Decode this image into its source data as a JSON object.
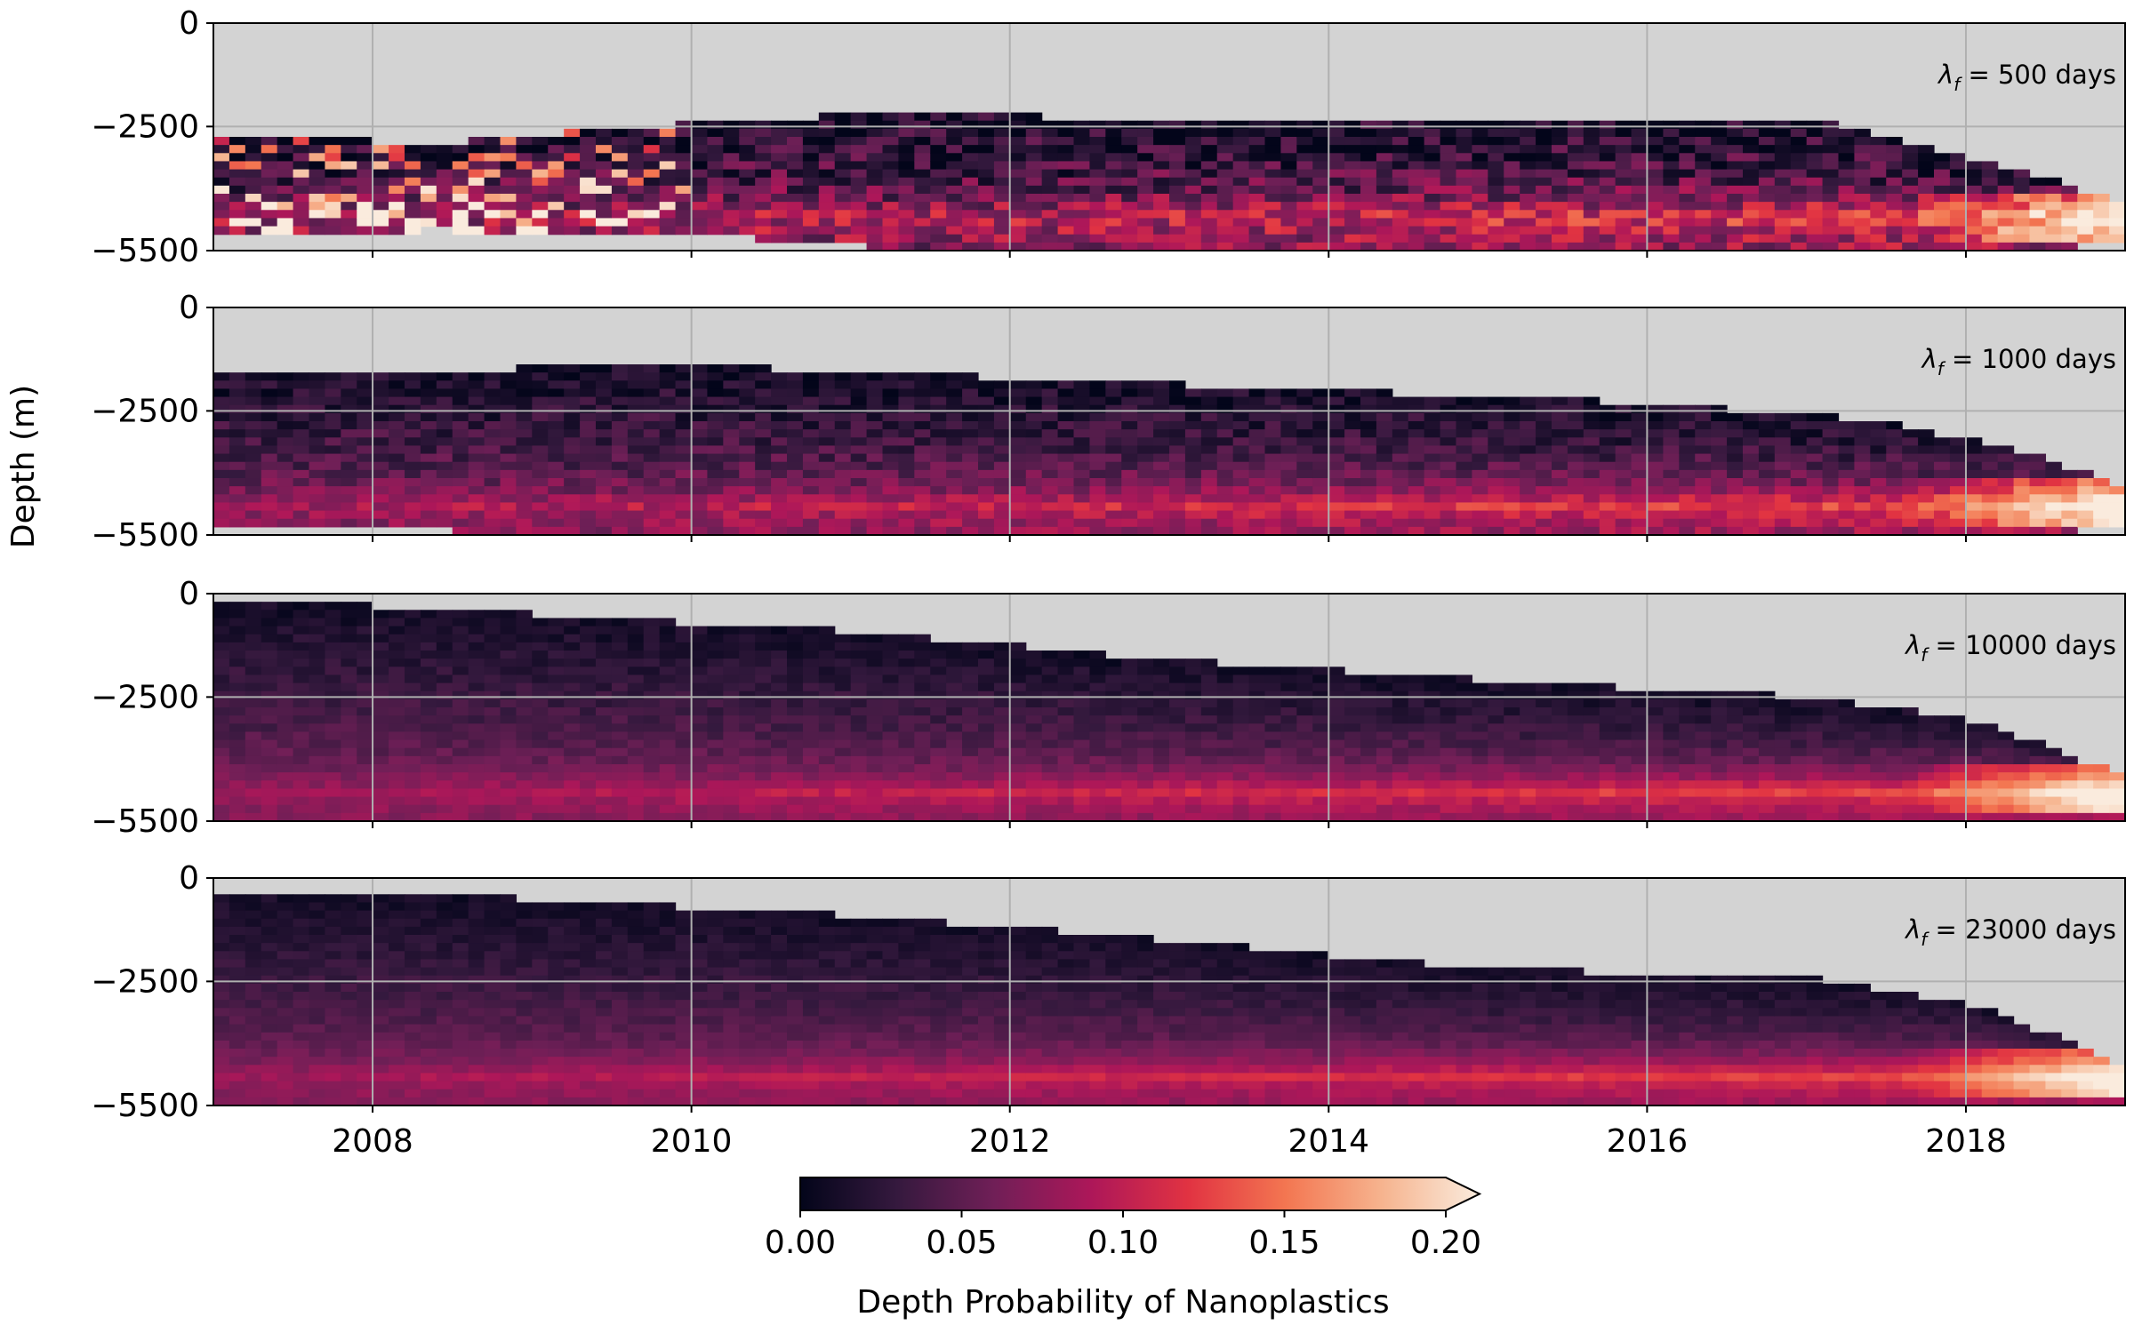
{
  "chart_data": {
    "type": "heatmap",
    "ylabel": "Depth (m)",
    "x_range": [
      "2007-01-01",
      "2019-01-01"
    ],
    "x_ticks": [
      "2008",
      "2010",
      "2012",
      "2014",
      "2016",
      "2018"
    ],
    "y_range": [
      -5500,
      0
    ],
    "y_ticks": [
      "0",
      "−2500",
      "−5500"
    ],
    "grid": true,
    "panel_background": "#d3d3d3",
    "colormap": "rocket",
    "colorbar": {
      "label": "Depth Probability of Nanoplastics",
      "range": [
        0.0,
        0.2
      ],
      "ticks": [
        "0.00",
        "0.05",
        "0.10",
        "0.15",
        "0.20"
      ],
      "extend": "max",
      "orientation": "horizontal",
      "colors": [
        "#03051a",
        "#35193e",
        "#701f57",
        "#ad1759",
        "#e13342",
        "#f37651",
        "#f6b48f",
        "#faebdd"
      ]
    },
    "panels": [
      {
        "annotation_symbol": "λ",
        "annotation_subscript": "f",
        "annotation_text": " = 500 days",
        "lambda_days": 500,
        "envelope": [
          {
            "date": "2007-01-01",
            "top": -2700,
            "bottom": -5100
          },
          {
            "date": "2008-06-01",
            "top": -2900,
            "bottom": -5000
          },
          {
            "date": "2010-06-01",
            "top": -2300,
            "bottom": -5200
          },
          {
            "date": "2011-06-01",
            "top": -2200,
            "bottom": -5500
          },
          {
            "date": "2014-01-01",
            "top": -2400,
            "bottom": -5500
          },
          {
            "date": "2017-01-01",
            "top": -2300,
            "bottom": -5500
          },
          {
            "date": "2018-01-01",
            "top": -3200,
            "bottom": -5500
          },
          {
            "date": "2018-06-01",
            "top": -3600,
            "bottom": -5500
          },
          {
            "date": "2019-01-01",
            "top": -4400,
            "bottom": -5300
          }
        ],
        "max_depth_band": -4700,
        "noise_level": 0.9
      },
      {
        "annotation_symbol": "λ",
        "annotation_subscript": "f",
        "annotation_text": " = 1000 days",
        "lambda_days": 1000,
        "envelope": [
          {
            "date": "2007-01-01",
            "top": -1600,
            "bottom": -5300
          },
          {
            "date": "2010-01-01",
            "top": -1400,
            "bottom": -5500
          },
          {
            "date": "2012-01-01",
            "top": -1700,
            "bottom": -5500
          },
          {
            "date": "2014-01-01",
            "top": -2000,
            "bottom": -5500
          },
          {
            "date": "2016-01-01",
            "top": -2300,
            "bottom": -5500
          },
          {
            "date": "2017-06-01",
            "top": -2700,
            "bottom": -5500
          },
          {
            "date": "2018-06-01",
            "top": -3500,
            "bottom": -5500
          },
          {
            "date": "2019-01-01",
            "top": -4400,
            "bottom": -5300
          }
        ],
        "max_depth_band": -4800,
        "noise_level": 0.5
      },
      {
        "annotation_symbol": "λ",
        "annotation_subscript": "f",
        "annotation_text": " = 10000 days",
        "lambda_days": 10000,
        "envelope": [
          {
            "date": "2007-01-01",
            "top": -100,
            "bottom": -5500
          },
          {
            "date": "2009-01-01",
            "top": -500,
            "bottom": -5500
          },
          {
            "date": "2011-01-01",
            "top": -900,
            "bottom": -5500
          },
          {
            "date": "2013-01-01",
            "top": -1600,
            "bottom": -5500
          },
          {
            "date": "2015-01-01",
            "top": -2100,
            "bottom": -5500
          },
          {
            "date": "2017-01-01",
            "top": -2500,
            "bottom": -5500
          },
          {
            "date": "2018-01-01",
            "top": -3000,
            "bottom": -5500
          },
          {
            "date": "2019-01-01",
            "top": -4400,
            "bottom": -5400
          }
        ],
        "max_depth_band": -4800,
        "noise_level": 0.25
      },
      {
        "annotation_symbol": "λ",
        "annotation_subscript": "f",
        "annotation_text": " = 23000 days",
        "lambda_days": 23000,
        "envelope": [
          {
            "date": "2007-01-01",
            "top": -300,
            "bottom": -5500
          },
          {
            "date": "2009-01-01",
            "top": -500,
            "bottom": -5500
          },
          {
            "date": "2011-01-01",
            "top": -900,
            "bottom": -5500
          },
          {
            "date": "2013-01-01",
            "top": -1500,
            "bottom": -5500
          },
          {
            "date": "2015-01-01",
            "top": -2200,
            "bottom": -5500
          },
          {
            "date": "2017-01-01",
            "top": -2400,
            "bottom": -5500
          },
          {
            "date": "2018-01-01",
            "top": -3000,
            "bottom": -5500
          },
          {
            "date": "2019-01-01",
            "top": -4500,
            "bottom": -5400
          }
        ],
        "max_depth_band": -4800,
        "noise_level": 0.2
      }
    ]
  }
}
